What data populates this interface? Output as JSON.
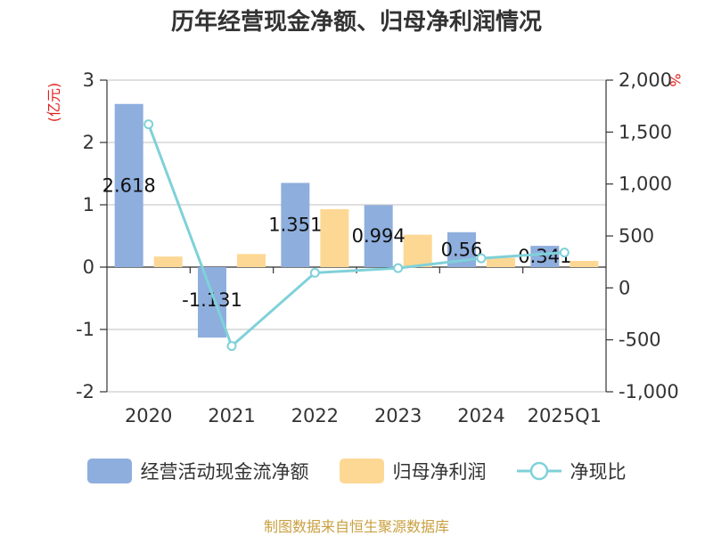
{
  "chart_data": {
    "type": "bar",
    "title": "历年经营现金净额、归母净利润情况",
    "categories": [
      "2020",
      "2021",
      "2022",
      "2023",
      "2024",
      "2025Q1"
    ],
    "left_axis": {
      "unit": "(亿元)",
      "ticks": [
        "3",
        "2",
        "1",
        "0",
        "-1",
        "-2"
      ],
      "ylim": [
        -2,
        3
      ]
    },
    "right_axis": {
      "unit": "%",
      "ticks": [
        "2,000",
        "1,500",
        "1,000",
        "500",
        "0",
        "-500",
        "-1,000"
      ],
      "ylim": [
        -1000,
        2000
      ]
    },
    "series": [
      {
        "name": "经营活动现金流净额",
        "type": "bar",
        "axis": "left",
        "color": "#8eaedd",
        "values": [
          2.618,
          -1.131,
          1.351,
          0.994,
          0.56,
          0.341
        ],
        "labels": [
          "2.618",
          "-1.131",
          "1.351",
          "0.994",
          "0.56",
          "0.341"
        ]
      },
      {
        "name": "归母净利润",
        "type": "bar",
        "axis": "left",
        "color": "#fdd894",
        "values": [
          0.17,
          0.21,
          0.93,
          0.52,
          0.15,
          0.1
        ]
      },
      {
        "name": "净现比",
        "type": "line",
        "axis": "right",
        "color": "#7fd1d9",
        "values": [
          1575,
          -560,
          145,
          190,
          285,
          340
        ]
      }
    ],
    "grid": true,
    "legend_position": "bottom"
  },
  "footer": {
    "source": "制图数据来自恒生聚源数据库"
  }
}
